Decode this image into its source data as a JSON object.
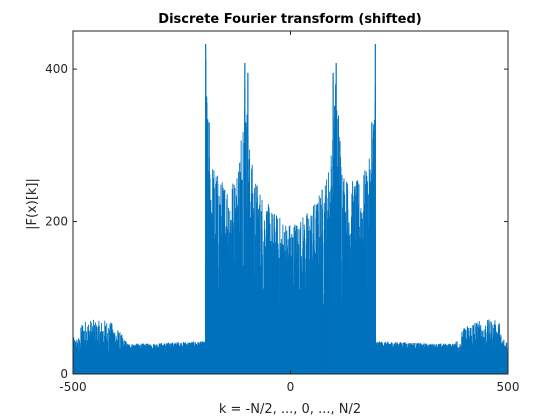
{
  "chart_data": {
    "type": "bar",
    "title": "Discrete Fourier transform (shifted)",
    "xlabel": "k = -N/2, ..., 0, ..., N/2",
    "ylabel": "|F(x)[k]|",
    "xlim": [
      -500,
      500
    ],
    "ylim": [
      0,
      450
    ],
    "xticks": [
      -500,
      0,
      500
    ],
    "yticks": [
      0,
      200,
      400
    ],
    "xtick_labels": [
      "-500",
      "0",
      "500"
    ],
    "ytick_labels": [
      "0",
      "200",
      "400"
    ],
    "grid": false,
    "series_color": "#0072bd",
    "envelope": {
      "x": [
        -500,
        -485,
        -480,
        -460,
        -440,
        -420,
        -400,
        -385,
        -375,
        -320,
        -260,
        -196,
        -195,
        -188,
        -180,
        -160,
        -140,
        -125,
        -115,
        -105,
        -95,
        -85,
        -75,
        -60,
        -40,
        -20,
        0,
        20,
        40,
        60,
        75,
        85,
        95,
        105,
        115,
        125,
        140,
        160,
        180,
        188,
        195,
        196,
        260,
        320,
        375,
        385,
        400,
        420,
        440,
        460,
        480,
        485,
        500
      ],
      "values": [
        48,
        50,
        70,
        72,
        70,
        72,
        62,
        50,
        40,
        40,
        42,
        43,
        430,
        300,
        280,
        255,
        255,
        260,
        310,
        405,
        305,
        265,
        250,
        230,
        215,
        205,
        200,
        205,
        215,
        230,
        250,
        265,
        305,
        405,
        310,
        260,
        255,
        255,
        280,
        300,
        430,
        43,
        42,
        40,
        40,
        50,
        62,
        72,
        70,
        72,
        70,
        50,
        48
      ]
    },
    "peaks": [
      {
        "x": -195,
        "value": 433
      },
      {
        "x": -187,
        "value": 330
      },
      {
        "x": -105,
        "value": 408
      },
      {
        "x": -98,
        "value": 395
      },
      {
        "x": 98,
        "value": 395
      },
      {
        "x": 105,
        "value": 408
      },
      {
        "x": 187,
        "value": 330
      },
      {
        "x": 195,
        "value": 433
      }
    ]
  }
}
